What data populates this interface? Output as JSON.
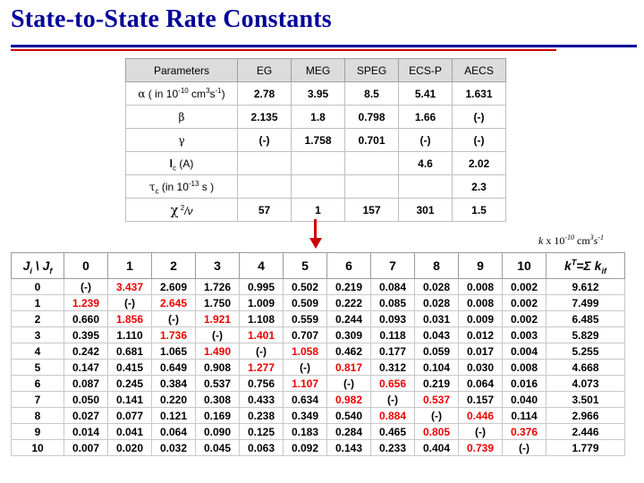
{
  "title": "State-to-State Rate Constants",
  "params": {
    "header": [
      "Parameters",
      "EG",
      "MEG",
      "SPEG",
      "ECS-P",
      "AECS"
    ],
    "alpha": {
      "label_sym": "α",
      "label_text": "( in 10",
      "label_exp": "-10",
      "label_unit": " cm",
      "label_unit_exp": "3",
      "label_tail": "s",
      "label_tail_exp": "-1",
      "label_close": ")",
      "values": [
        "2.78",
        "3.95",
        "8.5",
        "5.41",
        "1.631"
      ]
    },
    "beta": {
      "label": "β",
      "values": [
        "2.135",
        "1.8",
        "0.798",
        "1.66",
        "(-)"
      ]
    },
    "gamma": {
      "label": "γ",
      "values": [
        "(-)",
        "1.758",
        "0.701",
        "(-)",
        "(-)"
      ]
    },
    "lc": {
      "label_main": "l",
      "label_sub": "c",
      "label_tail": " (A)",
      "values": [
        "",
        "",
        "",
        "4.6",
        "2.02"
      ]
    },
    "tauc": {
      "label_main": "τ",
      "label_sub": "c",
      "label_text": " (in 10",
      "label_exp": "-13",
      "label_tail": " s )",
      "values": [
        "",
        "",
        "",
        "",
        "2.3"
      ]
    },
    "chi": {
      "label_main": "χ",
      "label_exp": " 2",
      "label_tail": "/ν",
      "values": [
        "57",
        "1",
        "157",
        "301",
        "1.5"
      ]
    }
  },
  "kunit": {
    "prefix": "k",
    "mid": " x 10",
    "exp": "-10",
    "unit": " cm",
    "unit_exp": "3",
    "s": "s",
    "s_exp": "-1"
  },
  "rates": {
    "header_ji": "J",
    "header_ji_sub": "i",
    "header_sep": " \\ J",
    "header_jf_sub": "f",
    "header_cols": [
      "0",
      "1",
      "2",
      "3",
      "4",
      "5",
      "6",
      "7",
      "8",
      "9",
      "10"
    ],
    "header_k": "k",
    "header_k_sup": "T",
    "header_k_eq": "=Σ k",
    "header_k_sub": "if",
    "rows": [
      {
        "ji": "0",
        "cells": [
          "(-)",
          "3.437",
          "2.609",
          "1.726",
          "0.995",
          "0.502",
          "0.219",
          "0.084",
          "0.028",
          "0.008",
          "0.002"
        ],
        "kt": "9.612"
      },
      {
        "ji": "1",
        "cells": [
          "1.239",
          "(-)",
          "2.645",
          "1.750",
          "1.009",
          "0.509",
          "0.222",
          "0.085",
          "0.028",
          "0.008",
          "0.002"
        ],
        "kt": "7.499"
      },
      {
        "ji": "2",
        "cells": [
          "0.660",
          "1.856",
          "(-)",
          "1.921",
          "1.108",
          "0.559",
          "0.244",
          "0.093",
          "0.031",
          "0.009",
          "0.002"
        ],
        "kt": "6.485"
      },
      {
        "ji": "3",
        "cells": [
          "0.395",
          "1.110",
          "1.736",
          "(-)",
          "1.401",
          "0.707",
          "0.309",
          "0.118",
          "0.043",
          "0.012",
          "0.003"
        ],
        "kt": "5.829"
      },
      {
        "ji": "4",
        "cells": [
          "0.242",
          "0.681",
          "1.065",
          "1.490",
          "(-)",
          "1.058",
          "0.462",
          "0.177",
          "0.059",
          "0.017",
          "0.004"
        ],
        "kt": "5.255"
      },
      {
        "ji": "5",
        "cells": [
          "0.147",
          "0.415",
          "0.649",
          "0.908",
          "1.277",
          "(-)",
          "0.817",
          "0.312",
          "0.104",
          "0.030",
          "0.008"
        ],
        "kt": "4.668"
      },
      {
        "ji": "6",
        "cells": [
          "0.087",
          "0.245",
          "0.384",
          "0.537",
          "0.756",
          "1.107",
          "(-)",
          "0.656",
          "0.219",
          "0.064",
          "0.016"
        ],
        "kt": "4.073"
      },
      {
        "ji": "7",
        "cells": [
          "0.050",
          "0.141",
          "0.220",
          "0.308",
          "0.433",
          "0.634",
          "0.982",
          "(-)",
          "0.537",
          "0.157",
          "0.040"
        ],
        "kt": "3.501"
      },
      {
        "ji": "8",
        "cells": [
          "0.027",
          "0.077",
          "0.121",
          "0.169",
          "0.238",
          "0.349",
          "0.540",
          "0.884",
          "(-)",
          "0.446",
          "0.114"
        ],
        "kt": "2.966"
      },
      {
        "ji": "9",
        "cells": [
          "0.014",
          "0.041",
          "0.064",
          "0.090",
          "0.125",
          "0.183",
          "0.284",
          "0.465",
          "0.805",
          "(-)",
          "0.376"
        ],
        "kt": "2.446"
      },
      {
        "ji": "10",
        "cells": [
          "0.007",
          "0.020",
          "0.032",
          "0.045",
          "0.063",
          "0.092",
          "0.143",
          "0.233",
          "0.404",
          "0.739",
          "(-)"
        ],
        "kt": "1.779"
      }
    ]
  },
  "colors": {
    "title": "#000099",
    "highlight": "#ee0000",
    "arrow": "#cc0000"
  }
}
